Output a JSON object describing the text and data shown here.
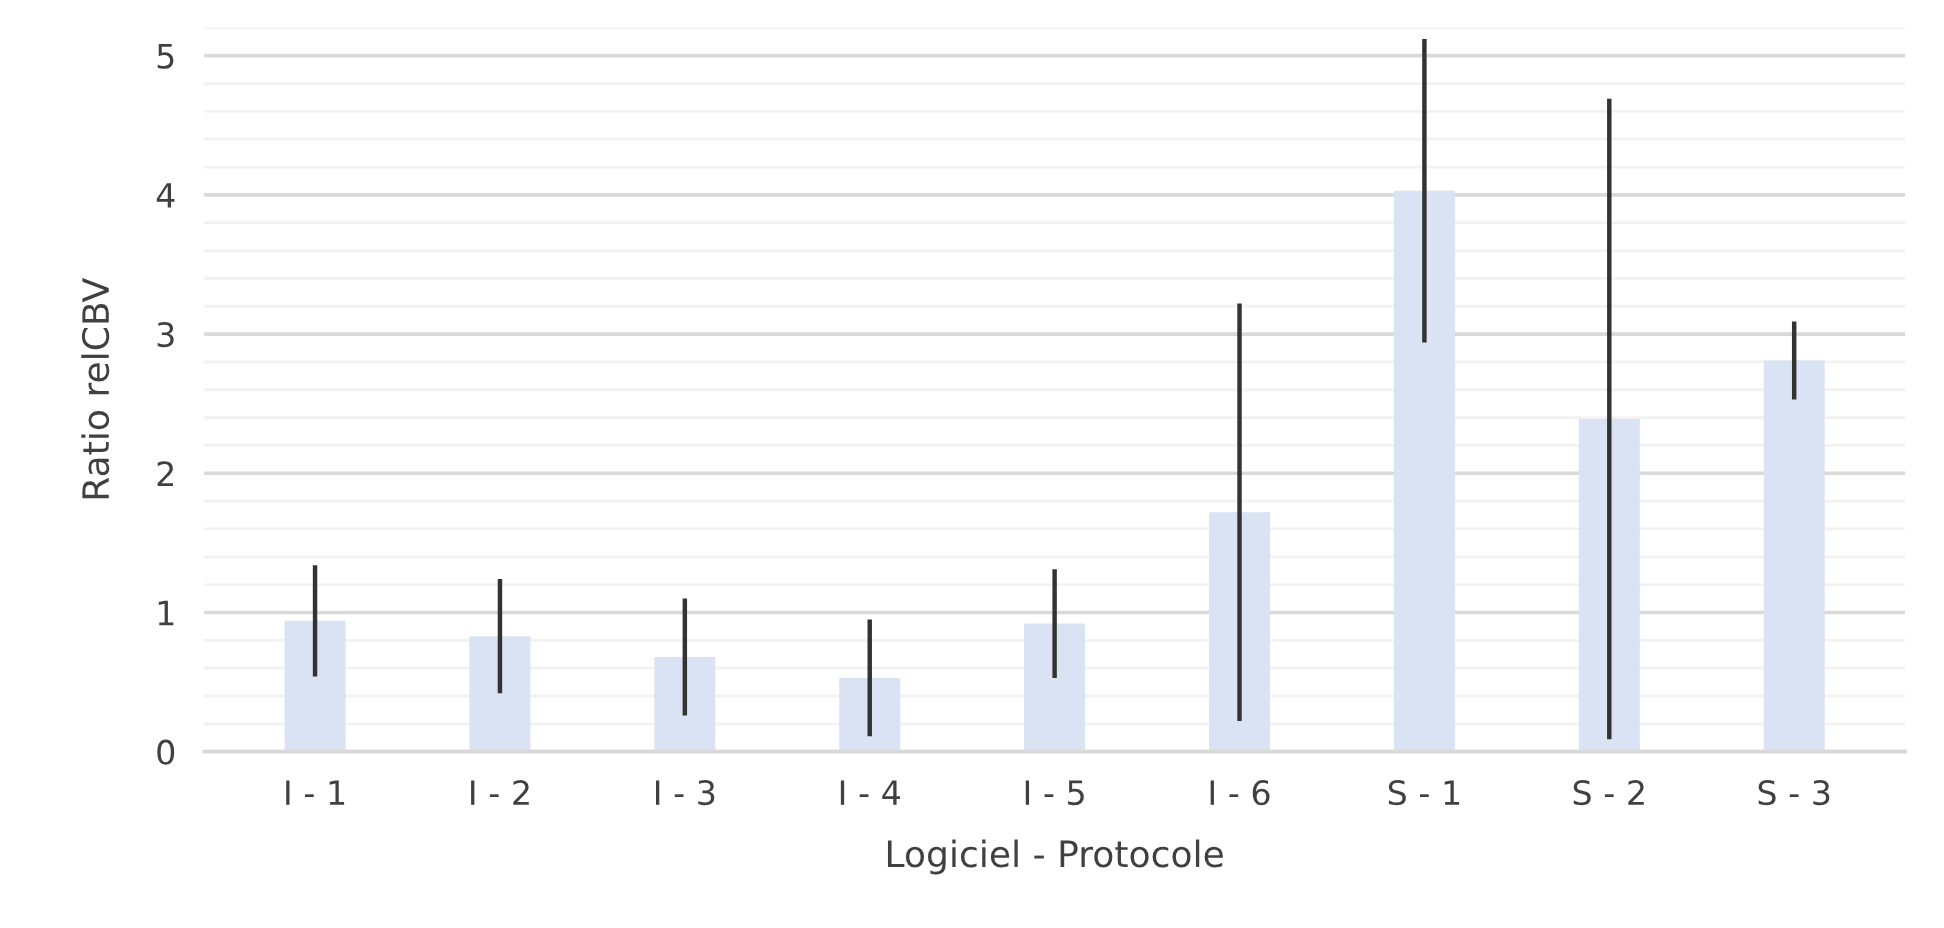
{
  "chart_data": {
    "type": "bar",
    "xlabel": "Logiciel - Protocole",
    "ylabel": "Ratio relCBV",
    "categories": [
      "I - 1",
      "I - 2",
      "I - 3",
      "I - 4",
      "I - 5",
      "I - 6",
      "S - 1",
      "S - 2",
      "S - 3"
    ],
    "values": [
      0.94,
      0.83,
      0.68,
      0.53,
      0.92,
      1.72,
      4.03,
      2.39,
      2.81
    ],
    "errors": [
      0.4,
      0.41,
      0.42,
      0.42,
      0.39,
      1.5,
      1.09,
      2.3,
      0.28
    ],
    "color": "#dae3f3",
    "ylim": [
      0,
      5.2
    ],
    "yticks": [
      0,
      {
        "value": 0.2,
        "label": null
      },
      {
        "value": 0.4,
        "label": null
      },
      {
        "value": 0.6,
        "label": null
      },
      {
        "value": 0.8,
        "label": null
      },
      1,
      {
        "value": 1.2,
        "label": null
      },
      {
        "value": 1.4,
        "label": null
      },
      {
        "value": 1.6,
        "label": null
      },
      {
        "value": 1.8,
        "label": null
      },
      2,
      {
        "value": 2.2,
        "label": null
      },
      {
        "value": 2.4,
        "label": null
      },
      {
        "value": 2.6,
        "label": null
      },
      {
        "value": 2.8,
        "label": null
      },
      3,
      {
        "value": 3.2,
        "label": null
      },
      {
        "value": 3.4,
        "label": null
      },
      {
        "value": 3.6,
        "label": null
      },
      {
        "value": 3.8,
        "label": null
      },
      4,
      {
        "value": 4.2,
        "label": null
      },
      {
        "value": 4.4,
        "label": null
      },
      {
        "value": 4.6,
        "label": null
      },
      {
        "value": 4.8,
        "label": null
      },
      5,
      {
        "value": 5.2,
        "label": null
      }
    ],
    "grid": "y",
    "legend": false
  }
}
